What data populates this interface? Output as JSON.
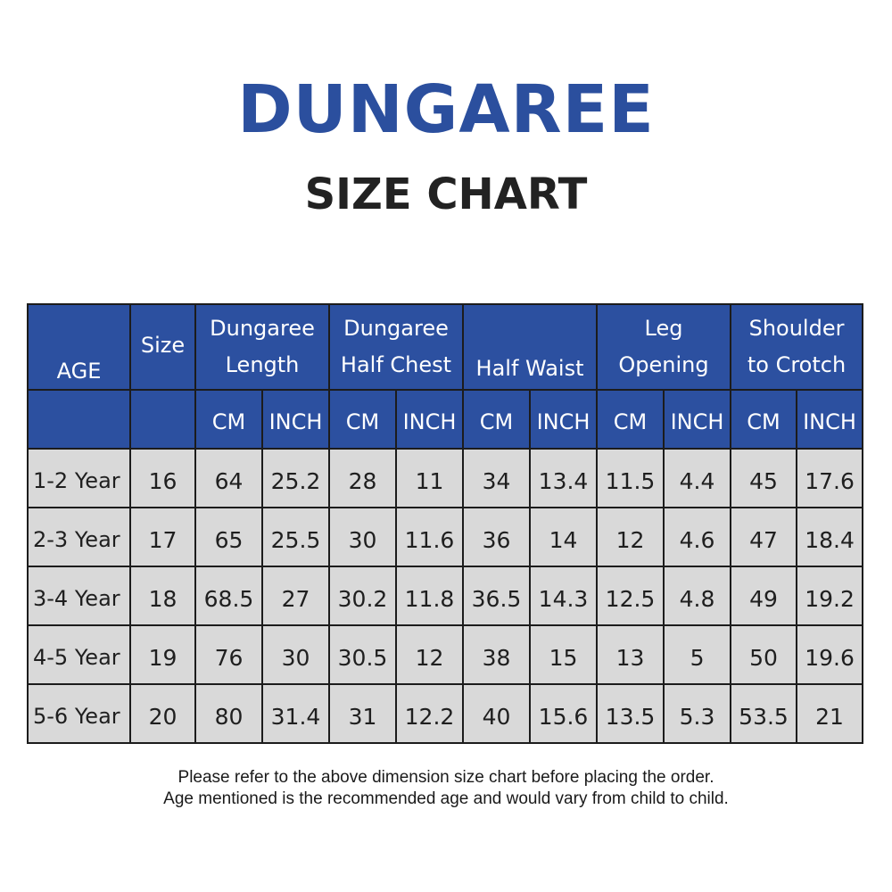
{
  "header": {
    "title": "DUNGAREE",
    "subtitle": "SIZE CHART"
  },
  "colors": {
    "title": "#2b4f9e",
    "header_fill": "#2c50a0",
    "cell_fill": "#d9d9d9",
    "border": "#1c1c1c"
  },
  "table": {
    "age_header": "AGE",
    "size_header": "Size",
    "groups": [
      {
        "lines": [
          "Dungaree",
          "Length"
        ]
      },
      {
        "lines": [
          "Dungaree",
          "Half Chest"
        ]
      },
      {
        "lines": [
          "Half Waist"
        ]
      },
      {
        "lines": [
          "Leg",
          "Opening"
        ]
      },
      {
        "lines": [
          "Shoulder",
          "to Crotch"
        ]
      }
    ],
    "unit_labels": [
      "CM",
      "INCH",
      "CM",
      "INCH",
      "CM",
      "INCH",
      "CM",
      "INCH",
      "CM",
      "INCH"
    ],
    "rows": [
      {
        "age": "1-2 Year",
        "size": "16",
        "values": [
          "64",
          "25.2",
          "28",
          "11",
          "34",
          "13.4",
          "11.5",
          "4.4",
          "45",
          "17.6"
        ]
      },
      {
        "age": "2-3 Year",
        "size": "17",
        "values": [
          "65",
          "25.5",
          "30",
          "11.6",
          "36",
          "14",
          "12",
          "4.6",
          "47",
          "18.4"
        ]
      },
      {
        "age": "3-4 Year",
        "size": "18",
        "values": [
          "68.5",
          "27",
          "30.2",
          "11.8",
          "36.5",
          "14.3",
          "12.5",
          "4.8",
          "49",
          "19.2"
        ]
      },
      {
        "age": "4-5 Year",
        "size": "19",
        "values": [
          "76",
          "30",
          "30.5",
          "12",
          "38",
          "15",
          "13",
          "5",
          "50",
          "19.6"
        ]
      },
      {
        "age": "5-6 Year",
        "size": "20",
        "values": [
          "80",
          "31.4",
          "31",
          "12.2",
          "40",
          "15.6",
          "13.5",
          "5.3",
          "53.5",
          "21"
        ]
      }
    ]
  },
  "notes": {
    "line1": "Please refer to the above dimension size chart before placing the order.",
    "line2": "Age mentioned is the recommended age and would vary from child to child."
  }
}
